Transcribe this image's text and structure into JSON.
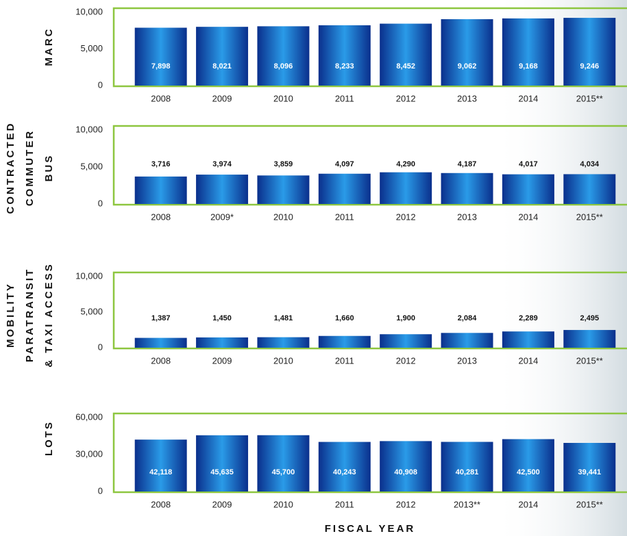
{
  "chart_data": [
    {
      "type": "bar",
      "ylabel_lines": [
        "MARC"
      ],
      "categories": [
        "2008",
        "2009",
        "2010",
        "2011",
        "2012",
        "2013",
        "2014",
        "2015**"
      ],
      "values": [
        7898,
        8021,
        8096,
        8233,
        8452,
        9062,
        9168,
        9246
      ],
      "value_labels": [
        "7,898",
        "8,021",
        "8,096",
        "8,233",
        "8,452",
        "9,062",
        "9,168",
        "9,246"
      ],
      "label_position": "inside",
      "color": "#2a9be8",
      "ylim": [
        0,
        10000
      ],
      "yticks": [
        0,
        {
          "value": 5000,
          "label": "5,000"
        },
        {
          "value": 10000,
          "label": "10,000"
        }
      ]
    },
    {
      "type": "bar",
      "ylabel_lines": [
        "CONTRACTED",
        "COMMUTER",
        "BUS"
      ],
      "categories": [
        "2008",
        "2009*",
        "2010",
        "2011",
        "2012",
        "2013",
        "2014",
        "2015**"
      ],
      "values": [
        3716,
        3974,
        3859,
        4097,
        4290,
        4187,
        4017,
        4034
      ],
      "value_labels": [
        "3,716",
        "3,974",
        "3,859",
        "4,097",
        "4,290",
        "4,187",
        "4,017",
        "4,034"
      ],
      "label_position": "above",
      "color": "#2a9be8",
      "ylim": [
        0,
        10000
      ],
      "yticks": [
        0,
        {
          "value": 5000,
          "label": "5,000"
        },
        {
          "value": 10000,
          "label": "10,000"
        }
      ]
    },
    {
      "type": "bar",
      "ylabel_lines": [
        "MOBILITY",
        "PARATRANSIT",
        "& TAXI ACCESS"
      ],
      "categories": [
        "2008",
        "2009",
        "2010",
        "2011",
        "2012",
        "2013",
        "2014",
        "2015**"
      ],
      "values": [
        1387,
        1450,
        1481,
        1660,
        1900,
        2084,
        2289,
        2495
      ],
      "value_labels": [
        "1,387",
        "1,450",
        "1,481",
        "1,660",
        "1,900",
        "2,084",
        "2,289",
        "2,495"
      ],
      "label_position": "above",
      "color": "#2a9be8",
      "ylim": [
        0,
        10000
      ],
      "yticks": [
        0,
        {
          "value": 5000,
          "label": "5,000"
        },
        {
          "value": 10000,
          "label": "10,000"
        }
      ]
    },
    {
      "type": "bar",
      "ylabel_lines": [
        "LOTS"
      ],
      "categories": [
        "2008",
        "2009",
        "2010",
        "2011",
        "2012",
        "2013**",
        "2014",
        "2015**"
      ],
      "values": [
        42118,
        45635,
        45700,
        40243,
        40908,
        40281,
        42500,
        39441
      ],
      "value_labels": [
        "42,118",
        "45,635",
        "45,700",
        "40,243",
        "40,908",
        "40,281",
        "42,500",
        "39,441"
      ],
      "label_position": "inside",
      "color": "#2a9be8",
      "ylim": [
        0,
        60000
      ],
      "yticks": [
        0,
        {
          "value": 30000,
          "label": "30,000"
        },
        {
          "value": 60000,
          "label": "60,000"
        }
      ],
      "xlabel": "FISCAL YEAR"
    }
  ]
}
